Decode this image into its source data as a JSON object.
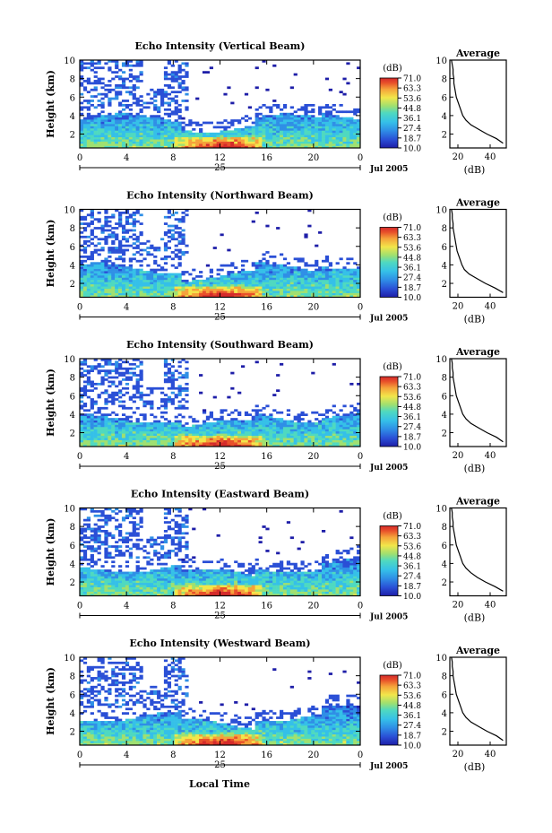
{
  "figure": {
    "xlabel": "Local Time",
    "date_label": "Jul 2005",
    "day_label": "25",
    "colorbar_unit": "(dB)",
    "colorbar_ticks": [
      "71.0",
      "63.3",
      "53.6",
      "44.8",
      "36.1",
      "27.4",
      "18.7",
      "10.0"
    ],
    "avg_title": "Average",
    "avg_xlabel": "(dB)",
    "ylabel": "Height (km)"
  },
  "colors": {
    "colormap": [
      "#1e1ea8",
      "#2a4fd6",
      "#2f8fe6",
      "#35c0e8",
      "#4fd9c0",
      "#9fe070",
      "#f2e64a",
      "#f5a23a",
      "#e8502a",
      "#d42a2a"
    ]
  },
  "chart_data": [
    {
      "type": "heatmap",
      "title": "Echo Intensity (Vertical Beam)",
      "xlabel": "Local Time",
      "ylabel": "Height (km)",
      "xlim": [
        0,
        24
      ],
      "ylim": [
        0.5,
        10
      ],
      "x_ticks": [
        "0",
        "4",
        "8",
        "12",
        "16",
        "20",
        "0"
      ],
      "y_ticks": [
        "2",
        "4",
        "6",
        "8",
        "10"
      ],
      "colorbar": {
        "unit": "(dB)",
        "range": [
          10.0,
          71.0
        ],
        "ticks": [
          "71.0",
          "63.3",
          "53.6",
          "44.8",
          "36.1",
          "27.4",
          "18.7",
          "10.0"
        ]
      },
      "average_profile": {
        "type": "line",
        "title": "Average",
        "xlabel": "(dB)",
        "x_ticks": [
          "20",
          "40"
        ],
        "y_ticks": [
          "2",
          "4",
          "6",
          "8",
          "10"
        ],
        "xlim": [
          15,
          50
        ],
        "ylim": [
          0.5,
          10
        ],
        "x": [
          48,
          44,
          38,
          33,
          28,
          25,
          23,
          22,
          21,
          20,
          19,
          18.5,
          18,
          17.5,
          17.5,
          17,
          17,
          16.5,
          16
        ],
        "y": [
          1,
          1.5,
          2,
          2.5,
          3,
          3.5,
          4,
          4.5,
          5,
          5.5,
          6,
          6.5,
          7,
          7.5,
          8,
          8.5,
          9,
          9.5,
          10
        ]
      }
    },
    {
      "type": "heatmap",
      "title": "Echo Intensity (Northward Beam)",
      "xlabel": "Local Time",
      "ylabel": "Height (km)",
      "xlim": [
        0,
        24
      ],
      "ylim": [
        0.5,
        10
      ],
      "x_ticks": [
        "0",
        "4",
        "8",
        "12",
        "16",
        "20",
        "0"
      ],
      "y_ticks": [
        "2",
        "4",
        "6",
        "8",
        "10"
      ],
      "colorbar": {
        "unit": "(dB)",
        "range": [
          10.0,
          71.0
        ],
        "ticks": [
          "71.0",
          "63.3",
          "53.6",
          "44.8",
          "36.1",
          "27.4",
          "18.7",
          "10.0"
        ]
      },
      "average_profile": {
        "type": "line",
        "title": "Average",
        "xlabel": "(dB)",
        "x_ticks": [
          "20",
          "40"
        ],
        "y_ticks": [
          "2",
          "4",
          "6",
          "8",
          "10"
        ],
        "xlim": [
          15,
          50
        ],
        "ylim": [
          0.5,
          10
        ],
        "x": [
          48,
          43,
          37,
          32,
          27,
          24,
          22.5,
          21.5,
          20.5,
          19.5,
          19,
          18.5,
          18,
          17.5,
          17,
          17,
          16.5,
          16.5,
          16
        ],
        "y": [
          1,
          1.5,
          2,
          2.5,
          3,
          3.5,
          4,
          4.5,
          5,
          5.5,
          6,
          6.5,
          7,
          7.5,
          8,
          8.5,
          9,
          9.5,
          10
        ]
      }
    },
    {
      "type": "heatmap",
      "title": "Echo Intensity (Southward Beam)",
      "xlabel": "Local Time",
      "ylabel": "Height (km)",
      "xlim": [
        0,
        24
      ],
      "ylim": [
        0.5,
        10
      ],
      "x_ticks": [
        "0",
        "4",
        "8",
        "12",
        "16",
        "20",
        "0"
      ],
      "y_ticks": [
        "2",
        "4",
        "6",
        "8",
        "10"
      ],
      "colorbar": {
        "unit": "(dB)",
        "range": [
          10.0,
          71.0
        ],
        "ticks": [
          "71.0",
          "63.3",
          "53.6",
          "44.8",
          "36.1",
          "27.4",
          "18.7",
          "10.0"
        ]
      },
      "average_profile": {
        "type": "line",
        "title": "Average",
        "xlabel": "(dB)",
        "x_ticks": [
          "20",
          "40"
        ],
        "y_ticks": [
          "2",
          "4",
          "6",
          "8",
          "10"
        ],
        "xlim": [
          15,
          50
        ],
        "ylim": [
          0.5,
          10
        ],
        "x": [
          48,
          44,
          38,
          33,
          28,
          25,
          23,
          22,
          21,
          20,
          19,
          18.5,
          18,
          17.5,
          17,
          17,
          16.5,
          16.5,
          16
        ],
        "y": [
          1,
          1.5,
          2,
          2.5,
          3,
          3.5,
          4,
          4.5,
          5,
          5.5,
          6,
          6.5,
          7,
          7.5,
          8,
          8.5,
          9,
          9.5,
          10
        ]
      }
    },
    {
      "type": "heatmap",
      "title": "Echo Intensity (Eastward Beam)",
      "xlabel": "Local Time",
      "ylabel": "Height (km)",
      "xlim": [
        0,
        24
      ],
      "ylim": [
        0.5,
        10
      ],
      "x_ticks": [
        "0",
        "4",
        "8",
        "12",
        "16",
        "20",
        "0"
      ],
      "y_ticks": [
        "2",
        "4",
        "6",
        "8",
        "10"
      ],
      "colorbar": {
        "unit": "(dB)",
        "range": [
          10.0,
          71.0
        ],
        "ticks": [
          "71.0",
          "63.3",
          "53.6",
          "44.8",
          "36.1",
          "27.4",
          "18.7",
          "10.0"
        ]
      },
      "average_profile": {
        "type": "line",
        "title": "Average",
        "xlabel": "(dB)",
        "x_ticks": [
          "20",
          "40"
        ],
        "y_ticks": [
          "2",
          "4",
          "6",
          "8",
          "10"
        ],
        "xlim": [
          15,
          50
        ],
        "ylim": [
          0.5,
          10
        ],
        "x": [
          48,
          43,
          37,
          32,
          28,
          25,
          23,
          22,
          21,
          20,
          19,
          18.5,
          18,
          17.5,
          17,
          17,
          16.5,
          16.5,
          16
        ],
        "y": [
          1,
          1.5,
          2,
          2.5,
          3,
          3.5,
          4,
          4.5,
          5,
          5.5,
          6,
          6.5,
          7,
          7.5,
          8,
          8.5,
          9,
          9.5,
          10
        ]
      }
    },
    {
      "type": "heatmap",
      "title": "Echo Intensity (Westward Beam)",
      "xlabel": "Local Time",
      "ylabel": "Height (km)",
      "xlim": [
        0,
        24
      ],
      "ylim": [
        0.5,
        10
      ],
      "x_ticks": [
        "0",
        "4",
        "8",
        "12",
        "16",
        "20",
        "0"
      ],
      "y_ticks": [
        "2",
        "4",
        "6",
        "8",
        "10"
      ],
      "colorbar": {
        "unit": "(dB)",
        "range": [
          10.0,
          71.0
        ],
        "ticks": [
          "71.0",
          "63.3",
          "53.6",
          "44.8",
          "36.1",
          "27.4",
          "18.7",
          "10.0"
        ]
      },
      "average_profile": {
        "type": "line",
        "title": "Average",
        "xlabel": "(dB)",
        "x_ticks": [
          "20",
          "40"
        ],
        "y_ticks": [
          "2",
          "4",
          "6",
          "8",
          "10"
        ],
        "xlim": [
          15,
          50
        ],
        "ylim": [
          0.5,
          10
        ],
        "x": [
          48,
          44,
          38,
          33,
          28,
          25,
          23,
          22,
          21,
          20,
          19,
          18.5,
          18,
          17.5,
          17,
          17,
          16.5,
          16.5,
          16
        ],
        "y": [
          1,
          1.5,
          2,
          2.5,
          3,
          3.5,
          4,
          4.5,
          5,
          5.5,
          6,
          6.5,
          7,
          7.5,
          8,
          8.5,
          9,
          9.5,
          10
        ]
      }
    }
  ]
}
